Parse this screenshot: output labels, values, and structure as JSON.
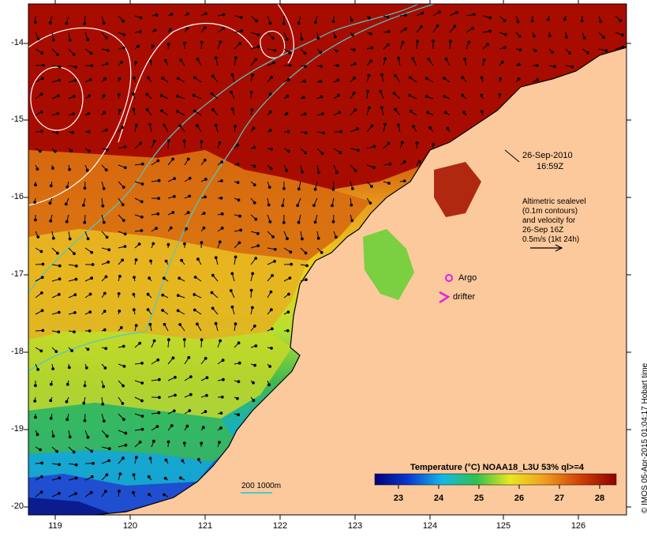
{
  "map": {
    "timestamp_date": "26-Sep-2010",
    "timestamp_time": "16:59Z",
    "altimetry_line1": "Altimetric sealevel",
    "altimetry_line2": "(0.1m contours)",
    "altimetry_line3": "and velocity for",
    "altimetry_line4": "26-Sep 16Z",
    "altimetry_line5": "0.5m/s (1kt 24h)",
    "argo_label": "Argo",
    "drifter_label": "drifter",
    "bathy_label": "200  1000m",
    "colorbar_title": "Temperature (°C) NOAA18_L3U 53% ql>=4",
    "colorbar_ticks": [
      "23",
      "24",
      "25",
      "26",
      "27",
      "28"
    ],
    "x_ticks": [
      "119",
      "120",
      "121",
      "122",
      "123",
      "124",
      "125",
      "126"
    ],
    "y_ticks": [
      "-14",
      "-15",
      "-16",
      "-17",
      "-18",
      "-19",
      "-20"
    ],
    "credit": "© IMOS 05-Apr-2015 01:04:17 Hobart time",
    "colors": {
      "land": "#fbc99c",
      "warm": "#a30f00",
      "cool": "#0a1f9e",
      "contour_white": "#ffffff",
      "bathy_cyan": "#4fc9c9",
      "argo_magenta": "#e020e0"
    }
  }
}
